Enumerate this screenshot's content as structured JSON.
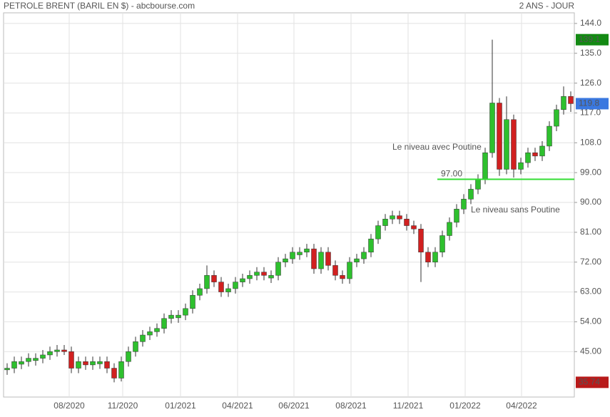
{
  "chart_data": {
    "type": "candlestick",
    "title": "PETROLE BRENT (BARIL EN $) - abcbourse.com",
    "subtitle": "2 ANS - JOUR",
    "up_color": "#2ec02e",
    "down_color": "#d12020",
    "open": [
      39.5,
      40,
      41.2,
      42,
      42.3,
      43,
      44,
      45,
      45.5,
      45,
      40,
      42,
      41,
      41.3,
      42,
      40,
      37,
      42,
      45,
      48,
      50,
      51,
      52,
      55,
      55.2,
      56,
      58,
      62,
      64,
      68,
      66,
      63,
      64,
      66,
      67,
      68,
      69,
      67.2,
      68,
      72,
      73,
      74.2,
      75,
      76,
      70,
      75,
      71,
      68,
      67,
      72,
      73,
      75,
      79,
      83,
      85,
      86,
      85,
      83,
      82,
      75,
      72,
      75,
      80,
      84,
      88,
      91,
      94,
      97,
      105,
      120,
      100,
      115,
      100,
      102,
      105,
      104,
      107,
      113,
      118,
      122
    ],
    "high": [
      41.5,
      43.5,
      43.5,
      44.5,
      44.5,
      45.5,
      46.5,
      47,
      47,
      46.5,
      43.5,
      43.5,
      43.5,
      43.5,
      43.5,
      41.5,
      43.5,
      46.5,
      49.5,
      51.5,
      52.5,
      53.5,
      56.5,
      57.5,
      57.5,
      59.5,
      63.5,
      65.5,
      71,
      69.5,
      67.5,
      65.5,
      67.5,
      68.5,
      69.5,
      70.5,
      70.5,
      69.5,
      73.5,
      74.5,
      76.5,
      76.5,
      77.5,
      77.5,
      76.5,
      76.5,
      72.5,
      69.5,
      73.5,
      74.5,
      76.5,
      80.5,
      84.5,
      86.5,
      87.5,
      87.5,
      86.5,
      84.5,
      83.5,
      76.5,
      76.5,
      81.5,
      85.5,
      89.5,
      92.5,
      95.5,
      98.5,
      106.5,
      139.1,
      121.5,
      122,
      116.5,
      103.5,
      106.5,
      106.5,
      108.5,
      114.5,
      119.5,
      125,
      123.5
    ],
    "low": [
      38,
      38.5,
      39.7,
      40.5,
      40.8,
      41.5,
      42.5,
      43.5,
      44,
      38.5,
      38.5,
      39.5,
      39.5,
      39.8,
      38.5,
      35.74,
      36,
      40.5,
      43.5,
      46.5,
      48.5,
      49.5,
      50.5,
      53.5,
      53.7,
      54.5,
      56.5,
      60.5,
      62.5,
      64.5,
      61.5,
      61.5,
      62.5,
      64.5,
      65.5,
      66.5,
      66.5,
      65.7,
      66.5,
      70.5,
      71.5,
      72.7,
      73.5,
      68.5,
      68.5,
      69.5,
      66.5,
      65.5,
      65.5,
      70.5,
      71.5,
      73.5,
      77.5,
      81.5,
      83.5,
      83.5,
      81.5,
      80.5,
      66,
      70.5,
      70.5,
      73.5,
      78.5,
      82.5,
      86.5,
      89.5,
      92.5,
      95.5,
      103.5,
      98,
      98.5,
      97.5,
      98.5,
      100.5,
      102.5,
      102.5,
      105.5,
      111.5,
      116.5,
      117.3
    ],
    "close": [
      40,
      42,
      42,
      43,
      43,
      44,
      45,
      45.5,
      45,
      40,
      42,
      41,
      42,
      42,
      40,
      37,
      42,
      45,
      48,
      50,
      51,
      52,
      55,
      56,
      56,
      58,
      62,
      64,
      68,
      66,
      63,
      64,
      66,
      67,
      68,
      69,
      68,
      68,
      72,
      73,
      75,
      75,
      76,
      70,
      75,
      71,
      68,
      67,
      72,
      73,
      75,
      79,
      83,
      85,
      86,
      85,
      83,
      82,
      75,
      72,
      75,
      80,
      84,
      88,
      91,
      94,
      97,
      105,
      120,
      100,
      115,
      100,
      102,
      105,
      104,
      107,
      113,
      118,
      122,
      119.8
    ],
    "xlim": [
      -0.5,
      79.5
    ],
    "xticks": [
      {
        "value": 8.7,
        "label": "08/2020"
      },
      {
        "value": 16.2,
        "label": "11/2020"
      },
      {
        "value": 24.3,
        "label": "01/2021"
      },
      {
        "value": 32.3,
        "label": "04/2021"
      },
      {
        "value": 40.2,
        "label": "06/2021"
      },
      {
        "value": 48.2,
        "label": "08/2021"
      },
      {
        "value": 56.2,
        "label": "11/2021"
      },
      {
        "value": 64.2,
        "label": "01/2022"
      },
      {
        "value": 72.1,
        "label": "04/2022"
      }
    ],
    "ylim": [
      31.3,
      147.2
    ],
    "yticks": [
      {
        "value": 45,
        "label": "45.00"
      },
      {
        "value": 54,
        "label": "54.00"
      },
      {
        "value": 63,
        "label": "63.00"
      },
      {
        "value": 72,
        "label": "72.00"
      },
      {
        "value": 81,
        "label": "81.00"
      },
      {
        "value": 90,
        "label": "90.00"
      },
      {
        "value": 99,
        "label": "99.00"
      },
      {
        "value": 108,
        "label": "108.0"
      },
      {
        "value": 117,
        "label": "117.0"
      },
      {
        "value": 126,
        "label": "126.0"
      },
      {
        "value": 135,
        "label": "135.0"
      },
      {
        "value": 144,
        "label": "144.0"
      }
    ],
    "grid": true,
    "hline": {
      "value": 97,
      "label": "97.00",
      "from": 60.3,
      "color": "#33dd33"
    },
    "price_tags": [
      {
        "value": 139.1,
        "color": "#138a13"
      },
      {
        "value": 119.8,
        "color": "#3a78e0"
      },
      {
        "value": 35.74,
        "color": "#b81a1a"
      }
    ],
    "annotations": [
      {
        "text": "Le niveau avec Poutine",
        "color": "#1010c0"
      },
      {
        "text": "Le niveau sans Poutine",
        "color": "#e07a10"
      }
    ]
  }
}
